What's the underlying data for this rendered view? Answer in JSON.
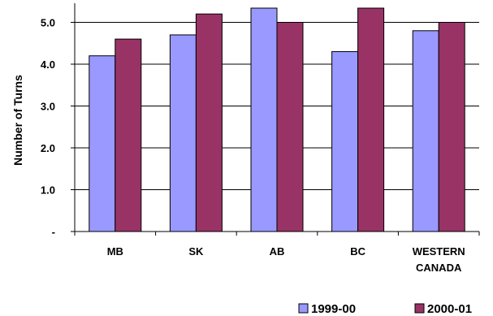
{
  "chart_data": {
    "type": "bar",
    "categories": [
      [
        "MB"
      ],
      [
        "SK"
      ],
      [
        "AB"
      ],
      [
        "BC"
      ],
      [
        "WESTERN",
        "CANADA"
      ]
    ],
    "series": [
      {
        "name": "1999-00",
        "values": [
          4.2,
          4.7,
          5.4,
          4.3,
          4.8
        ],
        "color": "#9999ff"
      },
      {
        "name": "2000-01",
        "values": [
          4.6,
          5.2,
          5.0,
          5.4,
          5.0
        ],
        "color": "#993366"
      }
    ],
    "ylabel": "Number of Turns",
    "xlabel": "",
    "ylim": [
      0,
      5.4
    ],
    "yticks": [
      {
        "value": 0,
        "label": "-"
      },
      {
        "value": 1,
        "label": "1.0"
      },
      {
        "value": 2,
        "label": "2.0"
      },
      {
        "value": 3,
        "label": "3.0"
      },
      {
        "value": 4,
        "label": "4.0"
      },
      {
        "value": 5,
        "label": "5.0"
      }
    ],
    "grid": true,
    "legend_position": "bottom-right"
  }
}
